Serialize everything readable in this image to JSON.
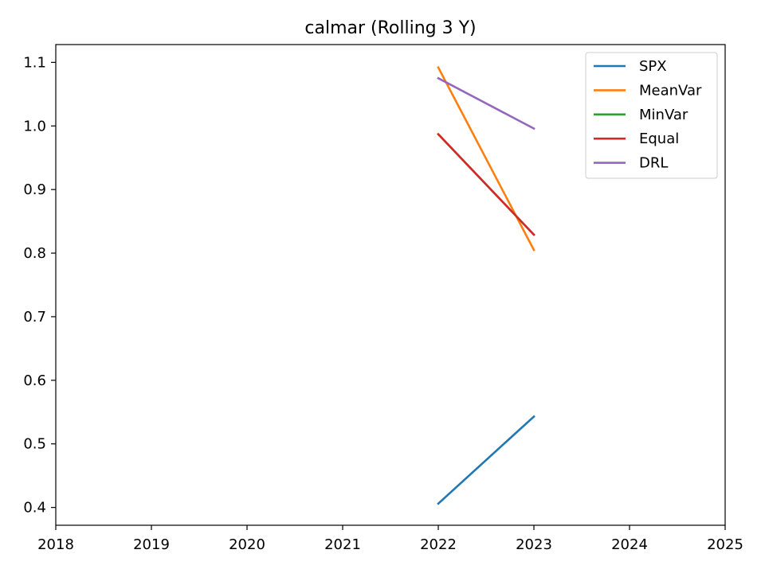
{
  "chart_data": {
    "type": "line",
    "title": "calmar (Rolling 3 Y)",
    "xlabel": "",
    "ylabel": "",
    "xlim": [
      2018,
      2025
    ],
    "ylim": [
      0.372,
      1.128
    ],
    "xticks": [
      2018,
      2019,
      2020,
      2021,
      2022,
      2023,
      2024,
      2025
    ],
    "yticks": [
      0.4,
      0.5,
      0.6,
      0.7,
      0.8,
      0.9,
      1.0,
      1.1
    ],
    "grid": false,
    "legend_position": "top-right",
    "series": [
      {
        "name": "SPX",
        "color": "#1f77b4",
        "x": [
          2022,
          2023
        ],
        "y": [
          0.406,
          0.543
        ]
      },
      {
        "name": "MeanVar",
        "color": "#ff7f0e",
        "x": [
          2022,
          2023
        ],
        "y": [
          1.092,
          0.805
        ]
      },
      {
        "name": "MinVar",
        "color": "#2ca02c",
        "x": [
          2022,
          2023
        ],
        "y": [
          0.987,
          0.829
        ]
      },
      {
        "name": "Equal",
        "color": "#d62728",
        "x": [
          2022,
          2023
        ],
        "y": [
          0.987,
          0.829
        ]
      },
      {
        "name": "DRL",
        "color": "#9467bd",
        "x": [
          2022,
          2023
        ],
        "y": [
          1.075,
          0.996
        ]
      }
    ]
  }
}
